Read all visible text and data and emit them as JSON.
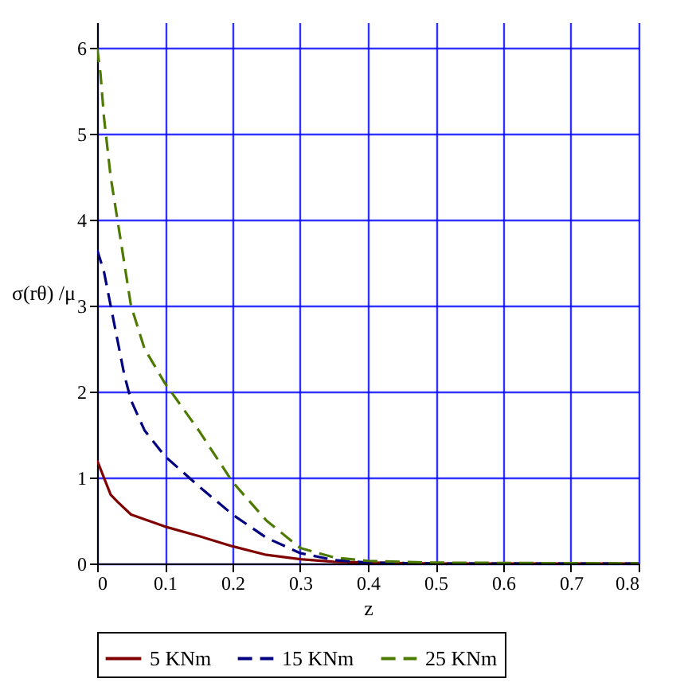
{
  "chart_data": {
    "type": "line",
    "xlabel": "z",
    "ylabel": "σ(rθ) /μ",
    "xlim": [
      0,
      0.8
    ],
    "ylim": [
      0,
      6.3
    ],
    "xticks": [
      0,
      0.1,
      0.2,
      0.3,
      0.4,
      0.5,
      0.6,
      0.7,
      0.8
    ],
    "yticks": [
      0,
      1,
      2,
      3,
      4,
      5,
      6
    ],
    "grid": true,
    "legend": "bottom",
    "marker": "none",
    "series": [
      {
        "name": "5 KNm",
        "color": "#800000",
        "line_style": "solid",
        "x": [
          0,
          0.01,
          0.02,
          0.03,
          0.05,
          0.1,
          0.15,
          0.2,
          0.25,
          0.3,
          0.35,
          0.4,
          0.5,
          0.6,
          0.8
        ],
        "values": [
          1.2,
          1.0,
          0.8,
          0.72,
          0.57,
          0.43,
          0.32,
          0.2,
          0.1,
          0.05,
          0.02,
          0.01,
          0,
          0,
          0
        ]
      },
      {
        "name": "15 KNm",
        "color": "#000080",
        "line_style": "dashed",
        "x": [
          0,
          0.01,
          0.02,
          0.04,
          0.05,
          0.07,
          0.1,
          0.15,
          0.2,
          0.25,
          0.3,
          0.35,
          0.4,
          0.5,
          0.8
        ],
        "values": [
          3.65,
          3.4,
          3.0,
          2.2,
          1.9,
          1.55,
          1.25,
          0.9,
          0.57,
          0.3,
          0.12,
          0.04,
          0.01,
          0,
          0
        ]
      },
      {
        "name": "25 KNm",
        "color": "#4d7a00",
        "line_style": "dashed",
        "x": [
          0,
          0.005,
          0.01,
          0.02,
          0.03,
          0.04,
          0.05,
          0.07,
          0.1,
          0.15,
          0.2,
          0.25,
          0.3,
          0.35,
          0.4,
          0.5,
          0.8
        ],
        "values": [
          6.0,
          5.7,
          5.2,
          4.5,
          4.0,
          3.5,
          3.0,
          2.5,
          2.1,
          1.55,
          0.95,
          0.5,
          0.18,
          0.07,
          0.03,
          0.01,
          0
        ]
      }
    ]
  }
}
